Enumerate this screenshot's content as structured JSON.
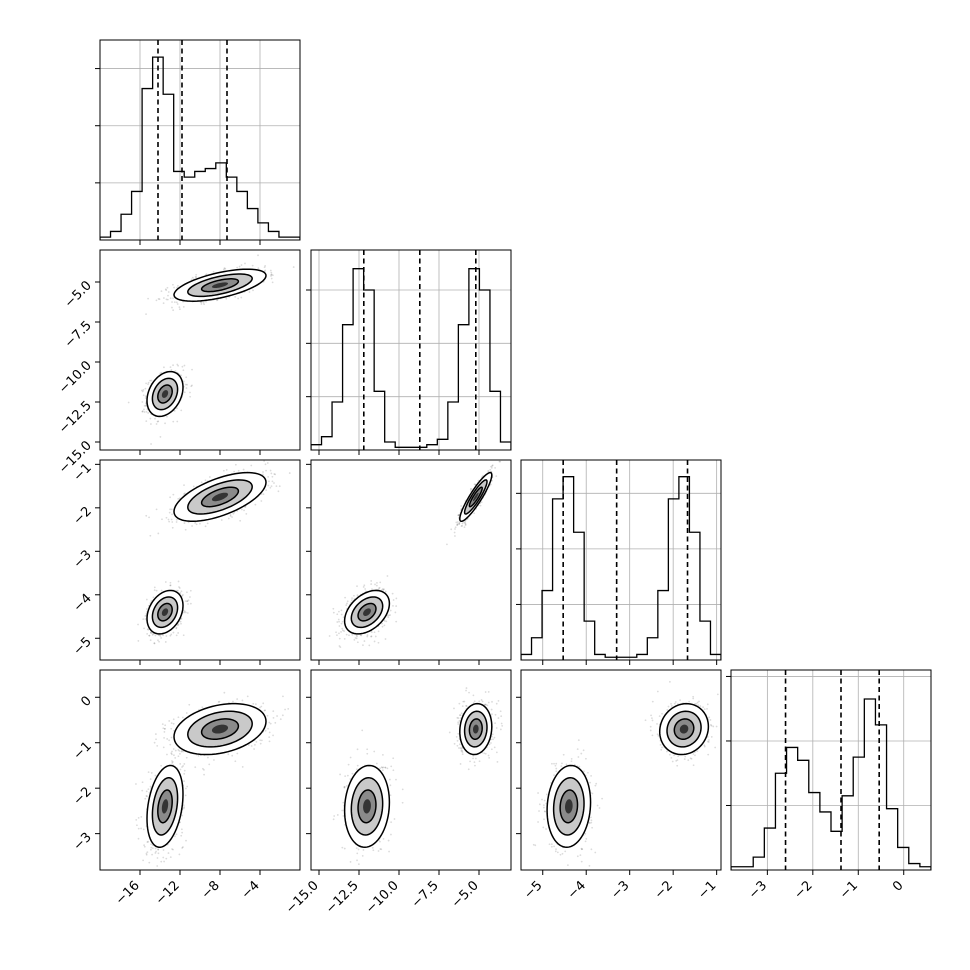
{
  "chart_data": {
    "type": "corner",
    "grid": true,
    "parameters": [
      {
        "range": [
          -20,
          0
        ],
        "ticks": [
          -16,
          -12,
          -8,
          -4
        ],
        "tick_labels": [
          "−16",
          "−12",
          "−8",
          "−4"
        ]
      },
      {
        "range": [
          -15.5,
          -3
        ],
        "ticks": [
          -15.0,
          -12.5,
          -10.0,
          -7.5,
          -5.0
        ],
        "tick_labels": [
          "−15.0",
          "−12.5",
          "−10.0",
          "−7.5",
          "−5.0"
        ]
      },
      {
        "range": [
          -5.5,
          -0.9
        ],
        "ticks": [
          -5,
          -4,
          -3,
          -2,
          -1
        ],
        "tick_labels": [
          "−5",
          "−4",
          "−3",
          "−2",
          "−1"
        ]
      },
      {
        "range": [
          -3.8,
          0.6
        ],
        "ticks": [
          -3,
          -2,
          -1,
          0
        ],
        "tick_labels": [
          "−3",
          "−2",
          "−1",
          "0"
        ]
      }
    ],
    "histograms": [
      {
        "param": 0,
        "counts": [
          1,
          3,
          9,
          17,
          53,
          64,
          51,
          24,
          22,
          24,
          25,
          27,
          22,
          17,
          11,
          6,
          3,
          1,
          1
        ],
        "hist_max": 70,
        "ygrid": [
          20,
          40,
          60
        ],
        "quantiles": [
          -14.2,
          -11.8,
          -7.3
        ]
      },
      {
        "param": 1,
        "counts": [
          2,
          5,
          18,
          47,
          68,
          60,
          22,
          3,
          1,
          1,
          1,
          2,
          4,
          18,
          47,
          68,
          60,
          22,
          3
        ],
        "hist_max": 75,
        "ygrid": [
          20,
          40,
          60
        ],
        "quantiles": [
          -12.2,
          -8.7,
          -5.2
        ]
      },
      {
        "param": 2,
        "counts": [
          2,
          8,
          25,
          58,
          66,
          46,
          14,
          2,
          1,
          1,
          1,
          2,
          8,
          25,
          58,
          66,
          46,
          14,
          2
        ],
        "hist_max": 72,
        "ygrid": [
          20,
          40,
          60
        ],
        "quantiles": [
          -4.53,
          -3.3,
          -1.67
        ]
      },
      {
        "param": 3,
        "counts": [
          1,
          1,
          4,
          13,
          30,
          38,
          34,
          24,
          18,
          12,
          23,
          35,
          53,
          45,
          19,
          7,
          2,
          1
        ],
        "hist_max": 62,
        "ygrid": [
          20,
          40,
          60
        ],
        "quantiles": [
          -2.6,
          -1.38,
          -0.54
        ]
      }
    ],
    "modes": [
      {
        "center": [
          -13.5,
          -12.0,
          -4.4,
          -2.4
        ],
        "sd": [
          0.9,
          0.7,
          0.25,
          0.45
        ],
        "corr": [
          [
            0,
            1,
            0.3
          ],
          [
            0,
            2,
            0.3
          ],
          [
            0,
            3,
            0.3
          ],
          [
            1,
            2,
            0.4
          ],
          [
            1,
            3,
            0.1
          ],
          [
            2,
            3,
            0.1
          ]
        ]
      },
      {
        "center": [
          -8.0,
          -5.2,
          -1.75,
          -0.7
        ],
        "sd": [
          2.3,
          0.5,
          0.28,
          0.28
        ],
        "corr": [
          [
            0,
            1,
            0.6
          ],
          [
            0,
            2,
            0.6
          ],
          [
            0,
            3,
            0.3
          ],
          [
            1,
            2,
            0.9
          ],
          [
            1,
            3,
            0.1
          ],
          [
            2,
            3,
            0.1
          ]
        ]
      }
    ]
  }
}
